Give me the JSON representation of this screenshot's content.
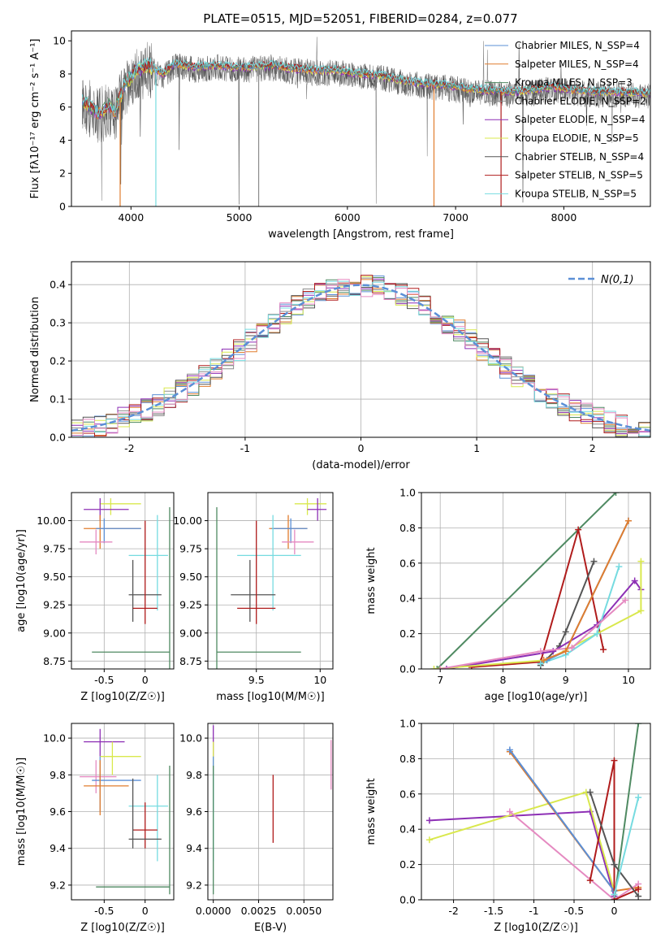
{
  "figure_title": "PLATE=0515, MJD=52051, FIBERID=0284, z=0.077",
  "colors": {
    "chab_miles": "#5b8fd6",
    "salp_miles": "#e07d2e",
    "krou_miles": "#4f8a62",
    "chab_elodie": "#8c8c8c",
    "salp_elodie": "#8d2fb5",
    "krou_elodie": "#d9e84d",
    "chab_stelib": "#555555",
    "salp_stelib": "#b01c1c",
    "krou_stelib": "#76dbe0",
    "pink": "#e58ac1",
    "gauss": "#5b8fd6",
    "grid": "#b0b0b0"
  },
  "chart_data": [
    {
      "id": "spectrum",
      "type": "line",
      "title": "PLATE=0515, MJD=52051, FIBERID=0284, z=0.077",
      "xlabel": "wavelength [Angstrom, rest frame]",
      "ylabel": "Flux [fλ10⁻¹⁷ erg cm⁻² s⁻¹ A⁻¹]",
      "xlim": [
        3450,
        8800
      ],
      "ylim": [
        0,
        10.6
      ],
      "xticks": [
        4000,
        5000,
        6000,
        7000,
        8000
      ],
      "yticks": [
        0,
        2,
        4,
        6,
        8,
        10
      ],
      "grid": false,
      "legend_position": "right",
      "legend": [
        "Chabrier MILES, N_SSP=4",
        "Salpeter MILES, N_SSP=4",
        "Kroupa MILES, N_SSP=3",
        "Chabrier ELODIE, N_SSP=2",
        "Salpeter ELODIE, N_SSP=4",
        "Kroupa ELODIE, N_SSP=5",
        "Chabrier STELIB, N_SSP=4",
        "Salpeter STELIB, N_SSP=5",
        "Kroupa STELIB, N_SSP=5"
      ],
      "continuum": [
        [
          3550,
          6.4
        ],
        [
          3700,
          5.6
        ],
        [
          3800,
          6.1
        ],
        [
          3850,
          5.7
        ],
        [
          3950,
          7.4
        ],
        [
          4050,
          8.2
        ],
        [
          4150,
          8.5
        ],
        [
          4300,
          8.0
        ],
        [
          4400,
          8.6
        ],
        [
          4600,
          8.4
        ],
        [
          4800,
          8.5
        ],
        [
          4900,
          8.4
        ],
        [
          5100,
          8.4
        ],
        [
          5300,
          8.5
        ],
        [
          5500,
          8.3
        ],
        [
          5700,
          8.2
        ],
        [
          5900,
          8.2
        ],
        [
          6100,
          8.0
        ],
        [
          6300,
          7.9
        ],
        [
          6500,
          7.6
        ],
        [
          6700,
          7.4
        ],
        [
          6900,
          7.3
        ],
        [
          7100,
          7.1
        ],
        [
          7300,
          7.0
        ],
        [
          7500,
          6.9
        ],
        [
          7700,
          7.0
        ],
        [
          7900,
          7.2
        ],
        [
          8100,
          7.0
        ],
        [
          8300,
          6.9
        ],
        [
          8500,
          6.9
        ],
        [
          8800,
          6.8
        ]
      ]
    },
    {
      "id": "residuals",
      "type": "bar",
      "xlabel": "(data-model)/error",
      "ylabel": "Normed distribution",
      "xlim": [
        -2.5,
        2.5
      ],
      "ylim": [
        0,
        0.46
      ],
      "xticks": [
        -2,
        -1,
        0,
        1,
        2
      ],
      "yticks": [
        0.0,
        0.1,
        0.2,
        0.3,
        0.4
      ],
      "grid": true,
      "legend_position": "top-right",
      "legend": "N(0,1)",
      "bin_width": 0.1
    },
    {
      "id": "age_vs_Z",
      "type": "scatter",
      "xlabel": "Z [log10(Z/Z☉)]",
      "ylabel": "age [log10(age/yr)]",
      "xlim": [
        -0.9,
        0.35
      ],
      "ylim": [
        8.68,
        10.25
      ],
      "xticks": [
        -0.5,
        0.0
      ],
      "yticks": [
        8.75,
        9.0,
        9.25,
        9.5,
        9.75,
        10.0
      ],
      "grid": true,
      "points": [
        {
          "c": "krou_elodie",
          "x": -0.42,
          "y": 10.15,
          "xe": [
            -0.55,
            -0.05
          ],
          "ye": [
            10.05,
            10.2
          ]
        },
        {
          "c": "salp_elodie",
          "x": -0.55,
          "y": 10.1,
          "xe": [
            -0.75,
            -0.2
          ],
          "ye": [
            10.0,
            10.2
          ]
        },
        {
          "c": "salp_miles",
          "x": -0.55,
          "y": 9.93,
          "xe": [
            -0.75,
            -0.05
          ],
          "ye": [
            9.75,
            10.05
          ]
        },
        {
          "c": "chab_miles",
          "x": -0.5,
          "y": 9.93,
          "xe": [
            -0.6,
            -0.05
          ],
          "ye": [
            9.8,
            10.02
          ]
        },
        {
          "c": "pink",
          "x": -0.6,
          "y": 9.81,
          "xe": [
            -0.8,
            -0.4
          ],
          "ye": [
            9.7,
            9.92
          ]
        },
        {
          "c": "krou_stelib",
          "x": 0.15,
          "y": 9.69,
          "xe": [
            -0.2,
            0.28
          ],
          "ye": [
            9.2,
            10.05
          ]
        },
        {
          "c": "chab_stelib",
          "x": -0.15,
          "y": 9.34,
          "xe": [
            -0.2,
            0.2
          ],
          "ye": [
            9.1,
            9.65
          ]
        },
        {
          "c": "salp_stelib",
          "x": 0.0,
          "y": 9.22,
          "xe": [
            -0.15,
            0.15
          ],
          "ye": [
            9.08,
            10.0
          ]
        },
        {
          "c": "krou_miles",
          "x": 0.3,
          "y": 8.83,
          "xe": [
            -0.65,
            0.3
          ],
          "ye": [
            8.65,
            10.12
          ]
        }
      ]
    },
    {
      "id": "age_vs_mass",
      "type": "scatter",
      "xlabel": "mass [log10(M/M☉)]",
      "ylabel": "",
      "xlim": [
        9.12,
        10.1
      ],
      "ylim": [
        8.68,
        10.25
      ],
      "xticks": [
        9.5,
        10.0
      ],
      "yticks": [
        8.75,
        9.0,
        9.25,
        9.5,
        9.75,
        10.0
      ],
      "grid": true,
      "points": [
        {
          "c": "krou_elodie",
          "x": 9.9,
          "y": 10.15,
          "xe": [
            9.8,
            10.05
          ],
          "ye": [
            10.05,
            10.2
          ]
        },
        {
          "c": "salp_elodie",
          "x": 9.98,
          "y": 10.1,
          "xe": [
            9.9,
            10.05
          ],
          "ye": [
            10.0,
            10.2
          ]
        },
        {
          "c": "salp_miles",
          "x": 9.75,
          "y": 9.93,
          "xe": [
            9.6,
            9.9
          ],
          "ye": [
            9.75,
            10.05
          ]
        },
        {
          "c": "chab_miles",
          "x": 9.77,
          "y": 9.93,
          "xe": [
            9.62,
            9.9
          ],
          "ye": [
            9.8,
            10.02
          ]
        },
        {
          "c": "pink",
          "x": 9.8,
          "y": 9.81,
          "xe": [
            9.7,
            9.95
          ],
          "ye": [
            9.7,
            9.92
          ]
        },
        {
          "c": "krou_stelib",
          "x": 9.63,
          "y": 9.69,
          "xe": [
            9.35,
            9.85
          ],
          "ye": [
            9.2,
            10.05
          ]
        },
        {
          "c": "chab_stelib",
          "x": 9.45,
          "y": 9.34,
          "xe": [
            9.3,
            9.65
          ],
          "ye": [
            9.1,
            9.65
          ]
        },
        {
          "c": "salp_stelib",
          "x": 9.5,
          "y": 9.22,
          "xe": [
            9.35,
            9.65
          ],
          "ye": [
            9.08,
            10.0
          ]
        },
        {
          "c": "krou_miles",
          "x": 9.19,
          "y": 8.83,
          "xe": [
            9.19,
            9.85
          ],
          "ye": [
            8.65,
            10.12
          ]
        }
      ]
    },
    {
      "id": "mw_vs_age",
      "type": "line",
      "xlabel": "age [log10(age/yr)]",
      "ylabel": "mass weight",
      "xlim": [
        6.7,
        10.35
      ],
      "ylim": [
        0,
        1.0
      ],
      "xticks": [
        7,
        8,
        9,
        10
      ],
      "yticks": [
        0.0,
        0.2,
        0.4,
        0.6,
        0.8,
        1.0
      ],
      "grid": true,
      "series": [
        {
          "c": "krou_miles",
          "pts": [
            [
              6.95,
              0.0
            ],
            [
              9.8,
              1.0
            ]
          ]
        },
        {
          "c": "salp_stelib",
          "pts": [
            [
              7.5,
              0.01
            ],
            [
              8.6,
              0.04
            ],
            [
              9.2,
              0.79
            ],
            [
              9.6,
              0.11
            ]
          ]
        },
        {
          "c": "chab_stelib",
          "pts": [
            [
              8.6,
              0.02
            ],
            [
              8.9,
              0.13
            ],
            [
              9.0,
              0.21
            ],
            [
              9.45,
              0.61
            ]
          ]
        },
        {
          "c": "salp_elodie",
          "pts": [
            [
              7.1,
              0.0
            ],
            [
              8.8,
              0.1
            ],
            [
              9.5,
              0.25
            ],
            [
              10.1,
              0.5
            ],
            [
              10.2,
              0.45
            ]
          ]
        },
        {
          "c": "krou_elodie",
          "pts": [
            [
              6.9,
              0.0
            ],
            [
              8.7,
              0.05
            ],
            [
              9.5,
              0.2
            ],
            [
              10.2,
              0.33
            ],
            [
              10.2,
              0.61
            ]
          ]
        },
        {
          "c": "krou_stelib",
          "pts": [
            [
              8.6,
              0.03
            ],
            [
              9.0,
              0.08
            ],
            [
              9.5,
              0.2
            ],
            [
              9.85,
              0.58
            ]
          ]
        },
        {
          "c": "pink",
          "pts": [
            [
              7.0,
              0.0
            ],
            [
              8.6,
              0.1
            ],
            [
              9.1,
              0.12
            ],
            [
              9.95,
              0.39
            ]
          ]
        },
        {
          "c": "chab_miles",
          "pts": [
            [
              8.7,
              0.05
            ],
            [
              9.0,
              0.1
            ],
            [
              10.0,
              0.84
            ]
          ]
        },
        {
          "c": "salp_miles",
          "pts": [
            [
              8.65,
              0.05
            ],
            [
              9.0,
              0.1
            ],
            [
              10.0,
              0.84
            ]
          ]
        }
      ]
    },
    {
      "id": "mass_vs_Z",
      "type": "scatter",
      "xlabel": "Z [log10(Z/Z☉)]",
      "ylabel": "mass [log10(M/M☉)]",
      "xlim": [
        -0.9,
        0.35
      ],
      "ylim": [
        9.12,
        10.08
      ],
      "xticks": [
        -0.5,
        0.0
      ],
      "yticks": [
        9.2,
        9.4,
        9.6,
        9.8,
        10.0
      ],
      "grid": true,
      "points": [
        {
          "c": "salp_elodie",
          "x": -0.55,
          "y": 9.98,
          "xe": [
            -0.75,
            -0.25
          ],
          "ye": [
            9.9,
            10.05
          ]
        },
        {
          "c": "krou_elodie",
          "x": -0.4,
          "y": 9.9,
          "xe": [
            -0.55,
            -0.05
          ],
          "ye": [
            9.8,
            9.98
          ]
        },
        {
          "c": "pink",
          "x": -0.6,
          "y": 9.79,
          "xe": [
            -0.8,
            -0.35
          ],
          "ye": [
            9.7,
            9.88
          ]
        },
        {
          "c": "chab_miles",
          "x": -0.55,
          "y": 9.77,
          "xe": [
            -0.65,
            -0.05
          ],
          "ye": [
            9.6,
            9.9
          ]
        },
        {
          "c": "salp_miles",
          "x": -0.55,
          "y": 9.74,
          "xe": [
            -0.75,
            -0.2
          ],
          "ye": [
            9.58,
            9.88
          ]
        },
        {
          "c": "krou_stelib",
          "x": 0.15,
          "y": 9.63,
          "xe": [
            -0.2,
            0.28
          ],
          "ye": [
            9.33,
            9.8
          ]
        },
        {
          "c": "salp_stelib",
          "x": 0.0,
          "y": 9.5,
          "xe": [
            -0.15,
            0.15
          ],
          "ye": [
            9.4,
            9.65
          ]
        },
        {
          "c": "chab_stelib",
          "x": -0.15,
          "y": 9.45,
          "xe": [
            -0.2,
            0.2
          ],
          "ye": [
            9.4,
            9.78
          ]
        },
        {
          "c": "krou_miles",
          "x": 0.3,
          "y": 9.19,
          "xe": [
            -0.6,
            0.3
          ],
          "ye": [
            9.15,
            9.85
          ]
        }
      ]
    },
    {
      "id": "mass_vs_EBV",
      "type": "scatter",
      "xlabel": "E(B-V)",
      "ylabel": "",
      "xlim": [
        -0.0003,
        0.0066
      ],
      "ylim": [
        9.12,
        10.08
      ],
      "xticks": [
        0.0,
        0.0025,
        0.005
      ],
      "xticklabels": [
        "0.0000",
        "0.0025",
        "0.0050"
      ],
      "yticks": [
        9.2,
        9.4,
        9.6,
        9.8,
        10.0
      ],
      "grid": true,
      "points": [
        {
          "c": "salp_elodie",
          "x": 0.0,
          "y": 9.98,
          "xe": [
            0,
            0
          ],
          "ye": [
            9.9,
            10.07
          ]
        },
        {
          "c": "krou_elodie",
          "x": 0.0,
          "y": 9.9,
          "xe": [
            0,
            0
          ],
          "ye": [
            9.8,
            9.98
          ]
        },
        {
          "c": "chab_miles",
          "x": 0.0,
          "y": 9.77,
          "xe": [
            0,
            0
          ],
          "ye": [
            9.6,
            9.9
          ]
        },
        {
          "c": "krou_stelib",
          "x": 0.0,
          "y": 9.63,
          "xe": [
            0,
            0
          ],
          "ye": [
            9.33,
            9.8
          ]
        },
        {
          "c": "krou_miles",
          "x": 0.0,
          "y": 9.19,
          "xe": [
            0,
            0
          ],
          "ye": [
            9.15,
            9.85
          ]
        },
        {
          "c": "salp_stelib",
          "x": 0.0033,
          "y": 9.62,
          "xe": [
            0.0033,
            0.0033
          ],
          "ye": [
            9.43,
            9.8
          ]
        },
        {
          "c": "pink",
          "x": 0.0065,
          "y": 9.86,
          "xe": [
            0.0065,
            0.0065
          ],
          "ye": [
            9.72,
            9.99
          ]
        }
      ]
    },
    {
      "id": "mw_vs_Z",
      "type": "line",
      "xlabel": "Z [log10(Z/Z☉)]",
      "ylabel": "mass weight",
      "xlim": [
        -2.4,
        0.45
      ],
      "ylim": [
        0,
        1.0
      ],
      "xticks": [
        -2.0,
        -1.5,
        -1.0,
        -0.5,
        0.0
      ],
      "yticks": [
        0.0,
        0.2,
        0.4,
        0.6,
        0.8,
        1.0
      ],
      "grid": true,
      "series": [
        {
          "c": "salp_elodie",
          "pts": [
            [
              -2.3,
              0.45
            ],
            [
              -0.3,
              0.5
            ],
            [
              0.0,
              0.02
            ]
          ]
        },
        {
          "c": "krou_elodie",
          "pts": [
            [
              -2.3,
              0.34
            ],
            [
              -0.35,
              0.61
            ],
            [
              0.0,
              0.05
            ]
          ]
        },
        {
          "c": "salp_miles",
          "pts": [
            [
              -1.3,
              0.84
            ],
            [
              0.0,
              0.05
            ],
            [
              0.3,
              0.07
            ]
          ]
        },
        {
          "c": "chab_miles",
          "pts": [
            [
              -1.3,
              0.85
            ],
            [
              0.0,
              0.05
            ]
          ]
        },
        {
          "c": "pink",
          "pts": [
            [
              -1.3,
              0.5
            ],
            [
              0.0,
              0.0
            ],
            [
              0.3,
              0.09
            ]
          ]
        },
        {
          "c": "krou_miles",
          "pts": [
            [
              0.3,
              1.0
            ],
            [
              0.0,
              0.0
            ]
          ]
        },
        {
          "c": "salp_stelib",
          "pts": [
            [
              -0.3,
              0.11
            ],
            [
              0.0,
              0.79
            ],
            [
              0.0,
              0.0
            ],
            [
              0.3,
              0.06
            ]
          ]
        },
        {
          "c": "chab_stelib",
          "pts": [
            [
              -0.3,
              0.61
            ],
            [
              0.0,
              0.2
            ],
            [
              0.3,
              0.02
            ]
          ]
        },
        {
          "c": "krou_stelib",
          "pts": [
            [
              0.0,
              0.03
            ],
            [
              0.3,
              0.58
            ]
          ]
        }
      ]
    }
  ]
}
